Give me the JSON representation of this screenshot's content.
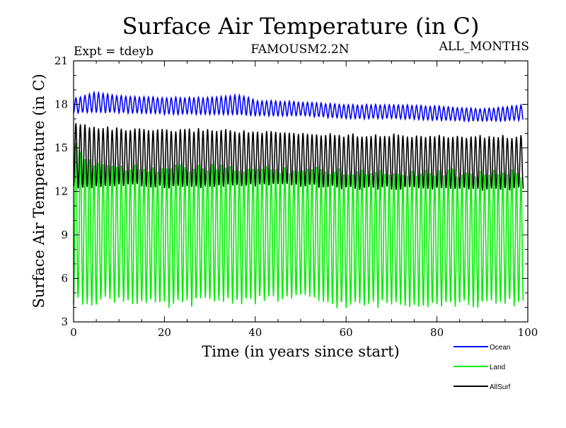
{
  "chart_data": {
    "type": "line",
    "title": "Surface Air Temperature (in C)",
    "subtitle_left": "Expt = tdeyb",
    "subtitle_center": "FAMOUSM2.2N",
    "subtitle_right": "ALL_MONTHS",
    "xlabel": "Time (in years since start)",
    "ylabel": "Surface Air Temperature (in C)",
    "xlim": [
      0,
      100
    ],
    "ylim": [
      3,
      21
    ],
    "x_ticks": [
      0,
      20,
      40,
      60,
      80,
      100
    ],
    "y_ticks": [
      3,
      6,
      9,
      12,
      15,
      18,
      21
    ],
    "grid": false,
    "legend_position": "bottom-right outside",
    "x_range_of_series": [
      0,
      99
    ],
    "series": [
      {
        "name": "Ocean",
        "color": "#0000ff",
        "min_envelope": [
          [
            0,
            17.4
          ],
          [
            10,
            17.4
          ],
          [
            20,
            17.3
          ],
          [
            30,
            17.3
          ],
          [
            40,
            17.2
          ],
          [
            50,
            17.2
          ],
          [
            60,
            17.0
          ],
          [
            70,
            17.0
          ],
          [
            80,
            16.9
          ],
          [
            90,
            16.8
          ],
          [
            99,
            16.9
          ]
        ],
        "max_envelope": [
          [
            0,
            18.4
          ],
          [
            5,
            18.9
          ],
          [
            10,
            18.6
          ],
          [
            20,
            18.5
          ],
          [
            30,
            18.5
          ],
          [
            37,
            18.7
          ],
          [
            40,
            18.3
          ],
          [
            50,
            18.2
          ],
          [
            60,
            18.0
          ],
          [
            70,
            18.0
          ],
          [
            80,
            17.9
          ],
          [
            90,
            17.7
          ],
          [
            99,
            18.0
          ]
        ]
      },
      {
        "name": "Land",
        "color": "#00ee00",
        "min_envelope": [
          [
            0,
            4.0
          ],
          [
            10,
            4.3
          ],
          [
            20,
            3.8
          ],
          [
            30,
            4.2
          ],
          [
            40,
            4.2
          ],
          [
            50,
            4.4
          ],
          [
            60,
            3.8
          ],
          [
            70,
            4.0
          ],
          [
            80,
            4.0
          ],
          [
            90,
            3.9
          ],
          [
            99,
            4.1
          ]
        ],
        "max_envelope": [
          [
            0,
            15.6
          ],
          [
            2,
            14.5
          ],
          [
            10,
            14.0
          ],
          [
            20,
            13.9
          ],
          [
            30,
            13.9
          ],
          [
            40,
            13.8
          ],
          [
            50,
            13.8
          ],
          [
            60,
            13.7
          ],
          [
            70,
            13.6
          ],
          [
            80,
            13.6
          ],
          [
            90,
            13.6
          ],
          [
            99,
            13.5
          ]
        ]
      },
      {
        "name": "AllSurf",
        "color": "#000000",
        "min_envelope": [
          [
            0,
            12.1
          ],
          [
            10,
            12.3
          ],
          [
            20,
            12.2
          ],
          [
            30,
            12.2
          ],
          [
            40,
            12.3
          ],
          [
            50,
            12.3
          ],
          [
            60,
            12.1
          ],
          [
            70,
            12.1
          ],
          [
            80,
            12.1
          ],
          [
            90,
            12.0
          ],
          [
            99,
            12.1
          ]
        ],
        "max_envelope": [
          [
            0,
            16.8
          ],
          [
            5,
            16.6
          ],
          [
            10,
            16.4
          ],
          [
            20,
            16.3
          ],
          [
            30,
            16.4
          ],
          [
            40,
            16.2
          ],
          [
            50,
            16.1
          ],
          [
            60,
            16.0
          ],
          [
            70,
            16.0
          ],
          [
            80,
            15.9
          ],
          [
            90,
            15.9
          ],
          [
            99,
            15.9
          ]
        ]
      }
    ]
  }
}
